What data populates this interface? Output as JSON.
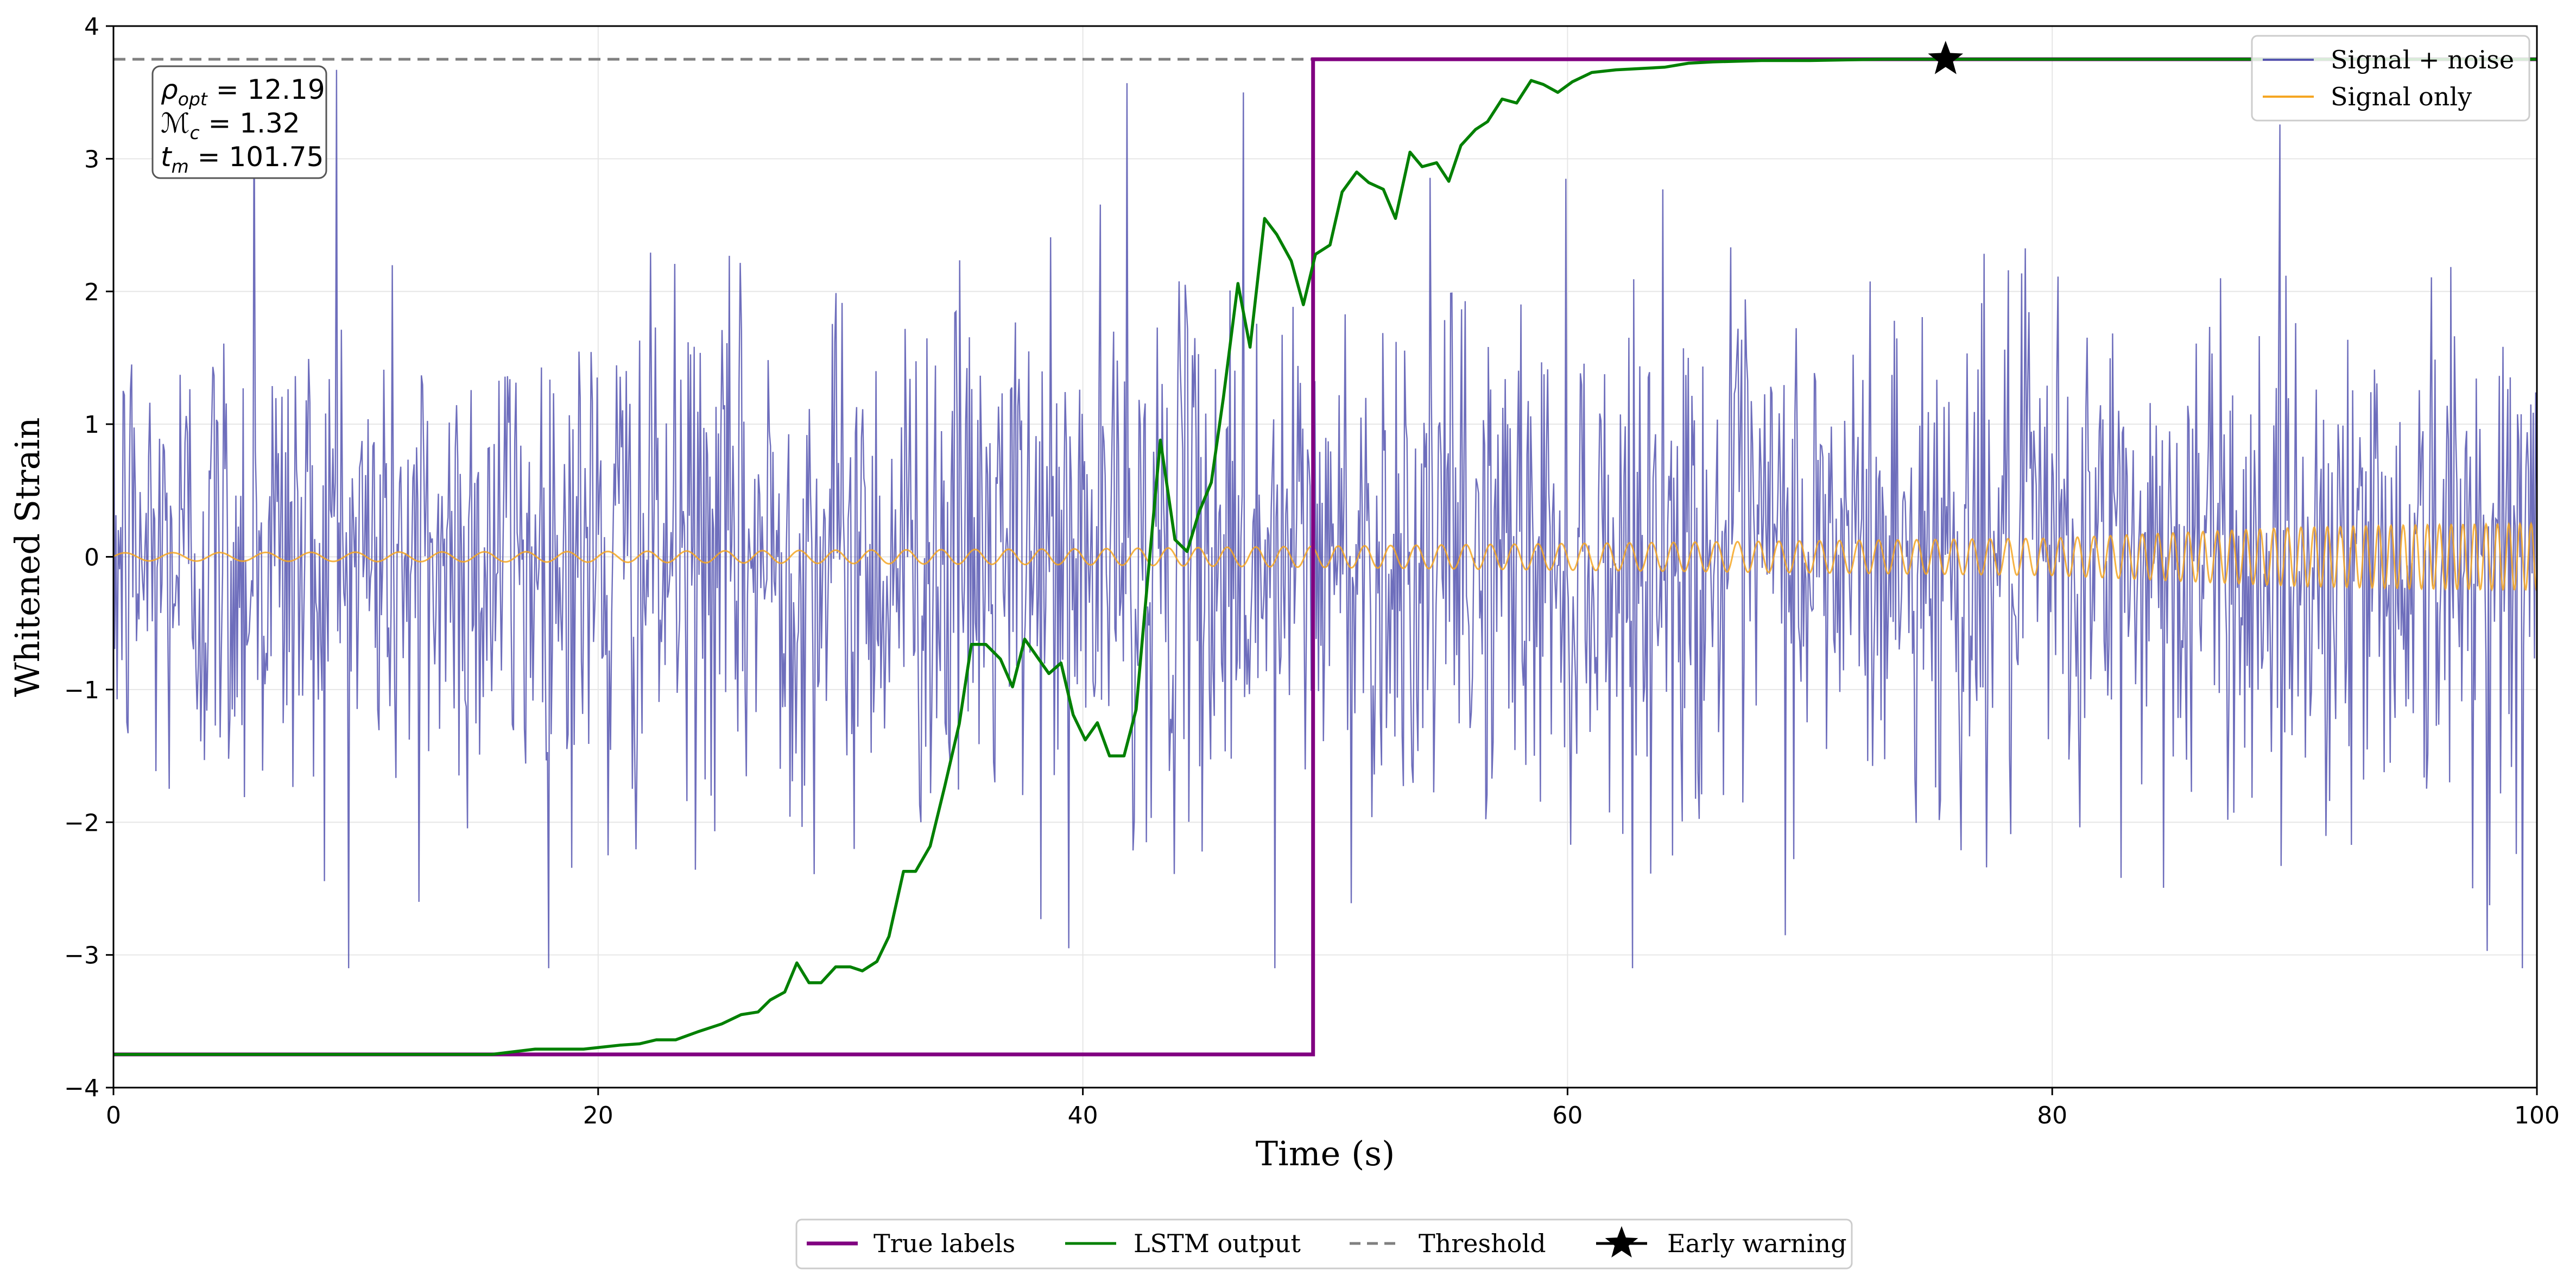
{
  "chart_data": {
    "type": "line",
    "title": "",
    "xlabel": "Time (s)",
    "ylabel": "Whitened Strain",
    "xlim": [
      0,
      100
    ],
    "ylim": [
      -4,
      4
    ],
    "x_ticks": [
      0,
      20,
      40,
      60,
      80,
      100
    ],
    "x_tick_labels": [
      "0",
      "20",
      "40",
      "60",
      "80",
      "100"
    ],
    "y_ticks": [
      -4,
      -3,
      -2,
      -1,
      0,
      1,
      2,
      3,
      4
    ],
    "y_tick_labels": [
      "−4",
      "−3",
      "−2",
      "−1",
      "0",
      "1",
      "2",
      "3",
      "4"
    ],
    "grid": true,
    "colors": {
      "noise": "#5555b0",
      "signal": "#f5a623",
      "labels": "#800080",
      "lstm": "#008000",
      "threshold": "#808080",
      "marker": "#000000"
    },
    "noisy_series": {
      "name": "Signal + noise",
      "x_range": [
        0,
        100
      ],
      "n_samples": 2000,
      "std": 0.95,
      "min": -3.1,
      "max": 3.7,
      "notable_points": [
        {
          "x": 5.8,
          "y": 3.65
        },
        {
          "x": 9.2,
          "y": 3.67
        },
        {
          "x": 12.6,
          "y": -2.6
        },
        {
          "x": 20.4,
          "y": -2.25
        },
        {
          "x": 39.4,
          "y": -2.95
        },
        {
          "x": 41.8,
          "y": 3.57
        },
        {
          "x": 46.6,
          "y": 3.5
        },
        {
          "x": 47.9,
          "y": -3.1
        },
        {
          "x": 99.4,
          "y": -3.1
        }
      ]
    },
    "signal_series": {
      "name": "Signal only",
      "description_points_x": [
        0,
        20,
        40,
        50,
        60,
        70,
        80,
        85,
        90,
        95,
        100
      ],
      "amplitude": [
        0.03,
        0.04,
        0.06,
        0.08,
        0.1,
        0.12,
        0.14,
        0.18,
        0.22,
        0.24,
        0.25
      ],
      "frequency_hz": [
        0.5,
        0.6,
        0.75,
        0.9,
        1.05,
        1.2,
        1.4,
        1.6,
        1.8,
        2.0,
        2.2
      ]
    },
    "true_labels": {
      "name": "True labels",
      "x": [
        0,
        49.5,
        49.5,
        100
      ],
      "y": [
        -3.75,
        -3.75,
        3.75,
        3.75
      ]
    },
    "lstm_output": {
      "name": "LSTM output",
      "x": [
        0,
        15.6,
        17.4,
        19.4,
        20.9,
        21.7,
        22.4,
        23.2,
        24.1,
        25.1,
        25.9,
        26.6,
        27.1,
        27.7,
        28.2,
        28.7,
        29.2,
        29.8,
        30.4,
        30.9,
        31.5,
        32.0,
        32.6,
        33.1,
        33.7,
        34.3,
        34.9,
        35.4,
        36.0,
        36.6,
        37.1,
        37.6,
        38.1,
        38.6,
        39.1,
        39.6,
        40.1,
        40.6,
        41.1,
        41.7,
        42.2,
        42.7,
        43.2,
        43.8,
        44.3,
        44.8,
        45.3,
        45.8,
        46.4,
        46.9,
        47.5,
        48.0,
        48.6,
        49.1,
        49.6,
        50.2,
        50.7,
        51.3,
        51.8,
        52.4,
        52.9,
        53.5,
        54.0,
        54.6,
        55.1,
        55.6,
        56.2,
        56.7,
        57.3,
        57.9,
        58.5,
        59.0,
        59.6,
        60.2,
        61.0,
        62.0,
        63.0,
        64.0,
        65.0,
        66.0,
        68.0,
        70.0,
        73.0,
        76.0,
        80.0,
        100.0
      ],
      "y": [
        -3.75,
        -3.75,
        -3.71,
        -3.71,
        -3.68,
        -3.67,
        -3.64,
        -3.64,
        -3.58,
        -3.52,
        -3.45,
        -3.43,
        -3.34,
        -3.28,
        -3.06,
        -3.21,
        -3.21,
        -3.09,
        -3.09,
        -3.12,
        -3.05,
        -2.86,
        -2.37,
        -2.37,
        -2.18,
        -1.73,
        -1.26,
        -0.66,
        -0.66,
        -0.77,
        -0.98,
        -0.62,
        -0.75,
        -0.88,
        -0.8,
        -1.19,
        -1.38,
        -1.25,
        -1.5,
        -1.5,
        -1.15,
        -0.12,
        0.88,
        0.13,
        0.04,
        0.34,
        0.56,
        1.2,
        2.06,
        1.58,
        2.55,
        2.43,
        2.23,
        1.9,
        2.28,
        2.35,
        2.75,
        2.9,
        2.82,
        2.77,
        2.55,
        3.05,
        2.94,
        2.97,
        2.83,
        3.1,
        3.22,
        3.28,
        3.45,
        3.42,
        3.59,
        3.56,
        3.5,
        3.58,
        3.65,
        3.67,
        3.68,
        3.69,
        3.72,
        3.73,
        3.74,
        3.74,
        3.75,
        3.75,
        3.75,
        3.75
      ]
    },
    "threshold": {
      "name": "Threshold",
      "y": 3.75
    },
    "early_warning": {
      "name": "Early warning",
      "x": 75.6,
      "y": 3.75
    },
    "annotation": {
      "lines": [
        {
          "var": "ρ",
          "sub": "opt",
          "eq": " = 12.19"
        },
        {
          "var": "ℳ",
          "sub": "c",
          "eq": " = 1.32"
        },
        {
          "var": "t",
          "sub": "m",
          "eq": " = 101.75"
        }
      ]
    },
    "legend_upper": {
      "position": "upper right",
      "entries": [
        "Signal + noise",
        "Signal only"
      ]
    },
    "legend_lower": {
      "position": "bottom center",
      "entries": [
        "True labels",
        "LSTM output",
        "Threshold",
        "Early warning"
      ]
    }
  }
}
